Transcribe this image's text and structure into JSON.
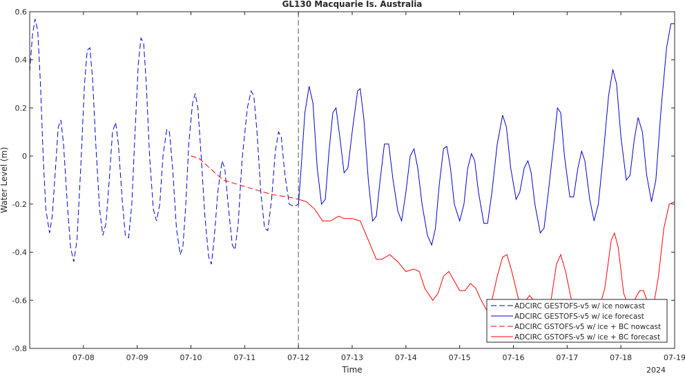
{
  "chart_data": {
    "type": "line",
    "title": "GL130 Macquarie Is. Australia",
    "xlabel": "Time",
    "ylabel": "Water Level (m)",
    "x_year_label": "2024",
    "xlim": [
      7.0,
      19.0
    ],
    "ylim": [
      -0.8,
      0.6
    ],
    "x_ticks": [
      {
        "value": 8,
        "label": "07-08"
      },
      {
        "value": 9,
        "label": "07-09"
      },
      {
        "value": 10,
        "label": "07-10"
      },
      {
        "value": 11,
        "label": "07-11"
      },
      {
        "value": 12,
        "label": "07-12"
      },
      {
        "value": 13,
        "label": "07-13"
      },
      {
        "value": 14,
        "label": "07-14"
      },
      {
        "value": 15,
        "label": "07-15"
      },
      {
        "value": 16,
        "label": "07-16"
      },
      {
        "value": 17,
        "label": "07-17"
      },
      {
        "value": 18,
        "label": "07-18"
      },
      {
        "value": 19,
        "label": "07-19"
      }
    ],
    "y_ticks": [
      {
        "value": 0.6,
        "label": "0.6"
      },
      {
        "value": 0.4,
        "label": "0.4"
      },
      {
        "value": 0.2,
        "label": "0.2"
      },
      {
        "value": 0,
        "label": "0"
      },
      {
        "value": -0.2,
        "label": "-0.2"
      },
      {
        "value": -0.4,
        "label": "-0.4"
      },
      {
        "value": -0.6,
        "label": "-0.6"
      },
      {
        "value": -0.8,
        "label": "-0.8"
      }
    ],
    "grid": false,
    "nowcast_divider_x": 12.0,
    "legend_position": "bottom-right",
    "series": [
      {
        "name": "ADCIRC GESTOFS-v5 w/ ice nowcast",
        "color": "#0000cc",
        "dash": true,
        "points": [
          [
            7.0,
            0.35
          ],
          [
            7.05,
            0.5
          ],
          [
            7.1,
            0.57
          ],
          [
            7.15,
            0.52
          ],
          [
            7.2,
            0.3
          ],
          [
            7.25,
            0.0
          ],
          [
            7.3,
            -0.22
          ],
          [
            7.37,
            -0.32
          ],
          [
            7.42,
            -0.25
          ],
          [
            7.48,
            -0.05
          ],
          [
            7.53,
            0.12
          ],
          [
            7.58,
            0.15
          ],
          [
            7.63,
            0.05
          ],
          [
            7.7,
            -0.2
          ],
          [
            7.76,
            -0.38
          ],
          [
            7.82,
            -0.44
          ],
          [
            7.88,
            -0.35
          ],
          [
            7.95,
            -0.05
          ],
          [
            8.02,
            0.3
          ],
          [
            8.07,
            0.44
          ],
          [
            8.12,
            0.45
          ],
          [
            8.17,
            0.32
          ],
          [
            8.23,
            0.05
          ],
          [
            8.3,
            -0.22
          ],
          [
            8.36,
            -0.33
          ],
          [
            8.42,
            -0.28
          ],
          [
            8.48,
            -0.1
          ],
          [
            8.54,
            0.1
          ],
          [
            8.6,
            0.14
          ],
          [
            8.65,
            0.05
          ],
          [
            8.72,
            -0.18
          ],
          [
            8.78,
            -0.33
          ],
          [
            8.84,
            -0.34
          ],
          [
            8.9,
            -0.2
          ],
          [
            8.96,
            0.1
          ],
          [
            9.02,
            0.38
          ],
          [
            9.07,
            0.49
          ],
          [
            9.12,
            0.47
          ],
          [
            9.17,
            0.3
          ],
          [
            9.23,
            0.0
          ],
          [
            9.3,
            -0.22
          ],
          [
            9.36,
            -0.27
          ],
          [
            9.42,
            -0.2
          ],
          [
            9.48,
            0.0
          ],
          [
            9.55,
            0.11
          ],
          [
            9.6,
            0.1
          ],
          [
            9.66,
            -0.05
          ],
          [
            9.73,
            -0.3
          ],
          [
            9.8,
            -0.41
          ],
          [
            9.85,
            -0.38
          ],
          [
            9.9,
            -0.22
          ],
          [
            9.96,
            0.05
          ],
          [
            10.03,
            0.22
          ],
          [
            10.08,
            0.26
          ],
          [
            10.13,
            0.2
          ],
          [
            10.19,
            0.0
          ],
          [
            10.26,
            -0.25
          ],
          [
            10.33,
            -0.42
          ],
          [
            10.38,
            -0.45
          ],
          [
            10.43,
            -0.35
          ],
          [
            10.5,
            -0.15
          ],
          [
            10.58,
            -0.02
          ],
          [
            10.63,
            -0.05
          ],
          [
            10.7,
            -0.22
          ],
          [
            10.77,
            -0.37
          ],
          [
            10.82,
            -0.39
          ],
          [
            10.88,
            -0.28
          ],
          [
            10.95,
            -0.02
          ],
          [
            11.05,
            0.2
          ],
          [
            11.12,
            0.27
          ],
          [
            11.17,
            0.25
          ],
          [
            11.23,
            0.1
          ],
          [
            11.3,
            -0.15
          ],
          [
            11.37,
            -0.3
          ],
          [
            11.43,
            -0.31
          ],
          [
            11.5,
            -0.18
          ],
          [
            11.57,
            0.02
          ],
          [
            11.63,
            0.1
          ],
          [
            11.68,
            0.08
          ],
          [
            11.75,
            -0.08
          ],
          [
            11.83,
            -0.2
          ],
          [
            11.92,
            -0.21
          ],
          [
            12.0,
            -0.2
          ]
        ]
      },
      {
        "name": "ADCIRC GESTOFS-v5 w/ ice forecast",
        "color": "#0000cc",
        "dash": false,
        "points": [
          [
            12.0,
            -0.2
          ],
          [
            12.05,
            -0.05
          ],
          [
            12.12,
            0.18
          ],
          [
            12.2,
            0.29
          ],
          [
            12.27,
            0.22
          ],
          [
            12.35,
            -0.05
          ],
          [
            12.43,
            -0.2
          ],
          [
            12.5,
            -0.18
          ],
          [
            12.57,
            0.02
          ],
          [
            12.64,
            0.18
          ],
          [
            12.7,
            0.2
          ],
          [
            12.77,
            0.08
          ],
          [
            12.85,
            -0.07
          ],
          [
            12.92,
            -0.05
          ],
          [
            13.0,
            0.1
          ],
          [
            13.1,
            0.27
          ],
          [
            13.15,
            0.28
          ],
          [
            13.22,
            0.15
          ],
          [
            13.3,
            -0.1
          ],
          [
            13.38,
            -0.27
          ],
          [
            13.45,
            -0.25
          ],
          [
            13.52,
            -0.1
          ],
          [
            13.6,
            0.05
          ],
          [
            13.68,
            0.05
          ],
          [
            13.76,
            -0.1
          ],
          [
            13.85,
            -0.23
          ],
          [
            13.92,
            -0.27
          ],
          [
            14.0,
            -0.15
          ],
          [
            14.08,
            0.0
          ],
          [
            14.15,
            0.03
          ],
          [
            14.22,
            -0.05
          ],
          [
            14.3,
            -0.2
          ],
          [
            14.4,
            -0.33
          ],
          [
            14.48,
            -0.37
          ],
          [
            14.55,
            -0.3
          ],
          [
            14.62,
            -0.12
          ],
          [
            14.7,
            0.03
          ],
          [
            14.76,
            0.04
          ],
          [
            14.83,
            -0.05
          ],
          [
            14.9,
            -0.2
          ],
          [
            15.0,
            -0.27
          ],
          [
            15.08,
            -0.2
          ],
          [
            15.15,
            -0.05
          ],
          [
            15.22,
            0.01
          ],
          [
            15.28,
            -0.02
          ],
          [
            15.35,
            -0.15
          ],
          [
            15.45,
            -0.28
          ],
          [
            15.52,
            -0.28
          ],
          [
            15.6,
            -0.15
          ],
          [
            15.7,
            0.05
          ],
          [
            15.8,
            0.17
          ],
          [
            15.87,
            0.12
          ],
          [
            15.95,
            -0.05
          ],
          [
            16.05,
            -0.18
          ],
          [
            16.12,
            -0.15
          ],
          [
            16.2,
            -0.05
          ],
          [
            16.27,
            -0.02
          ],
          [
            16.33,
            -0.07
          ],
          [
            16.4,
            -0.2
          ],
          [
            16.5,
            -0.32
          ],
          [
            16.57,
            -0.3
          ],
          [
            16.65,
            -0.15
          ],
          [
            16.75,
            0.05
          ],
          [
            16.82,
            0.2
          ],
          [
            16.88,
            0.18
          ],
          [
            16.95,
            0.0
          ],
          [
            17.05,
            -0.17
          ],
          [
            17.12,
            -0.17
          ],
          [
            17.2,
            -0.05
          ],
          [
            17.27,
            0.02
          ],
          [
            17.33,
            -0.02
          ],
          [
            17.42,
            -0.18
          ],
          [
            17.5,
            -0.27
          ],
          [
            17.58,
            -0.2
          ],
          [
            17.67,
            0.0
          ],
          [
            17.77,
            0.25
          ],
          [
            17.85,
            0.36
          ],
          [
            17.92,
            0.3
          ],
          [
            18.0,
            0.08
          ],
          [
            18.1,
            -0.1
          ],
          [
            18.17,
            -0.08
          ],
          [
            18.25,
            0.07
          ],
          [
            18.32,
            0.16
          ],
          [
            18.4,
            0.1
          ],
          [
            18.48,
            -0.08
          ],
          [
            18.57,
            -0.19
          ],
          [
            18.65,
            -0.1
          ],
          [
            18.75,
            0.2
          ],
          [
            18.85,
            0.45
          ],
          [
            18.93,
            0.55
          ],
          [
            19.0,
            0.55
          ]
        ]
      },
      {
        "name": "ADCIRC GSTOFS-v5 w/ ice + BC nowcast",
        "color": "#ff0000",
        "dash": true,
        "points": [
          [
            10.0,
            0.0
          ],
          [
            10.15,
            -0.01
          ],
          [
            10.3,
            -0.04
          ],
          [
            10.45,
            -0.07
          ],
          [
            10.6,
            -0.1
          ],
          [
            10.75,
            -0.11
          ],
          [
            10.9,
            -0.12
          ],
          [
            11.05,
            -0.13
          ],
          [
            11.2,
            -0.14
          ],
          [
            11.35,
            -0.15
          ],
          [
            11.5,
            -0.16
          ],
          [
            11.65,
            -0.165
          ],
          [
            11.8,
            -0.17
          ],
          [
            12.0,
            -0.18
          ]
        ]
      },
      {
        "name": "ADCIRC GSTOFS-v5 w/ ice + BC forecast",
        "color": "#ff0000",
        "dash": false,
        "points": [
          [
            12.0,
            -0.18
          ],
          [
            12.15,
            -0.19
          ],
          [
            12.3,
            -0.22
          ],
          [
            12.45,
            -0.27
          ],
          [
            12.6,
            -0.27
          ],
          [
            12.75,
            -0.25
          ],
          [
            12.85,
            -0.26
          ],
          [
            13.0,
            -0.26
          ],
          [
            13.15,
            -0.27
          ],
          [
            13.3,
            -0.35
          ],
          [
            13.45,
            -0.43
          ],
          [
            13.55,
            -0.43
          ],
          [
            13.7,
            -0.41
          ],
          [
            13.85,
            -0.44
          ],
          [
            14.0,
            -0.48
          ],
          [
            14.15,
            -0.47
          ],
          [
            14.25,
            -0.48
          ],
          [
            14.35,
            -0.55
          ],
          [
            14.5,
            -0.6
          ],
          [
            14.6,
            -0.57
          ],
          [
            14.7,
            -0.5
          ],
          [
            14.8,
            -0.48
          ],
          [
            14.9,
            -0.52
          ],
          [
            15.0,
            -0.56
          ],
          [
            15.1,
            -0.56
          ],
          [
            15.2,
            -0.53
          ],
          [
            15.3,
            -0.55
          ],
          [
            15.4,
            -0.6
          ],
          [
            15.5,
            -0.64
          ],
          [
            15.6,
            -0.6
          ],
          [
            15.7,
            -0.5
          ],
          [
            15.8,
            -0.42
          ],
          [
            15.88,
            -0.41
          ],
          [
            15.97,
            -0.48
          ],
          [
            16.1,
            -0.6
          ],
          [
            16.2,
            -0.61
          ],
          [
            16.3,
            -0.58
          ],
          [
            16.45,
            -0.62
          ],
          [
            16.6,
            -0.65
          ],
          [
            16.7,
            -0.6
          ],
          [
            16.8,
            -0.45
          ],
          [
            16.88,
            -0.41
          ],
          [
            16.97,
            -0.48
          ],
          [
            17.1,
            -0.62
          ],
          [
            17.25,
            -0.66
          ],
          [
            17.4,
            -0.64
          ],
          [
            17.55,
            -0.67
          ],
          [
            17.7,
            -0.55
          ],
          [
            17.82,
            -0.35
          ],
          [
            17.88,
            -0.32
          ],
          [
            17.95,
            -0.38
          ],
          [
            18.05,
            -0.57
          ],
          [
            18.15,
            -0.63
          ],
          [
            18.25,
            -0.6
          ],
          [
            18.35,
            -0.56
          ],
          [
            18.42,
            -0.56
          ],
          [
            18.5,
            -0.61
          ],
          [
            18.58,
            -0.66
          ],
          [
            18.7,
            -0.5
          ],
          [
            18.8,
            -0.3
          ],
          [
            18.9,
            -0.2
          ],
          [
            19.0,
            -0.19
          ]
        ]
      }
    ]
  }
}
